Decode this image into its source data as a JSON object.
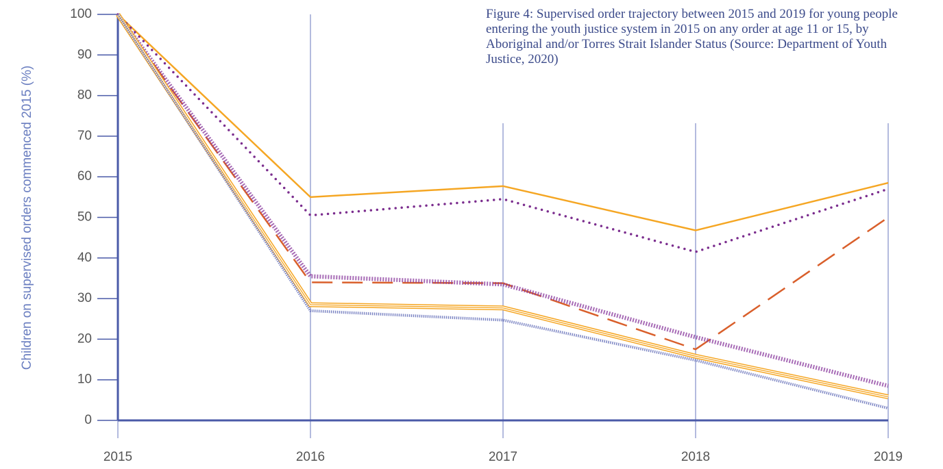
{
  "chart_data": {
    "type": "line",
    "title": "Figure 4: Supervised order trajectory between 2015 and 2019 for young people entering the youth justice system in 2015 on any order at age 11 or 15, by Aboriginal and/or Torres Strait Islander Status (Source: Department of Youth Justice, 2020)",
    "y_label": "Children on supervised orders commenced 2015 (%)",
    "x": [
      2015,
      2016,
      2017,
      2018,
      2019
    ],
    "xlim": [
      2015,
      2019
    ],
    "xticks": [
      2015,
      2016,
      2017,
      2018,
      2019
    ],
    "ylim": [
      0,
      100
    ],
    "yticks": [
      0,
      10,
      20,
      30,
      40,
      50,
      60,
      70,
      80,
      90,
      100
    ],
    "grid": true,
    "series": [
      {
        "color": "#f5a623",
        "line_style": "solid",
        "values": [
          100,
          55,
          57.7,
          46.8,
          58.5
        ]
      },
      {
        "color": "#7b2d8e",
        "line_style": "dotted",
        "values": [
          100,
          50.5,
          54.5,
          41.5,
          57
        ]
      },
      {
        "color": "#d95f2b",
        "line_style": "dashed",
        "values": [
          100,
          34,
          33.8,
          17.5,
          50
        ]
      },
      {
        "color": "#8a3a9e",
        "line_style": "crosshatch",
        "values": [
          100,
          35.5,
          33.5,
          20.5,
          8.5
        ]
      },
      {
        "color": "#f5a623",
        "line_style": "triple",
        "values": [
          100,
          28.5,
          27.7,
          15.8,
          5.8
        ]
      },
      {
        "color": "#7d86c4",
        "line_style": "hatched",
        "values": [
          100,
          27,
          24.7,
          14.8,
          3
        ]
      }
    ]
  }
}
